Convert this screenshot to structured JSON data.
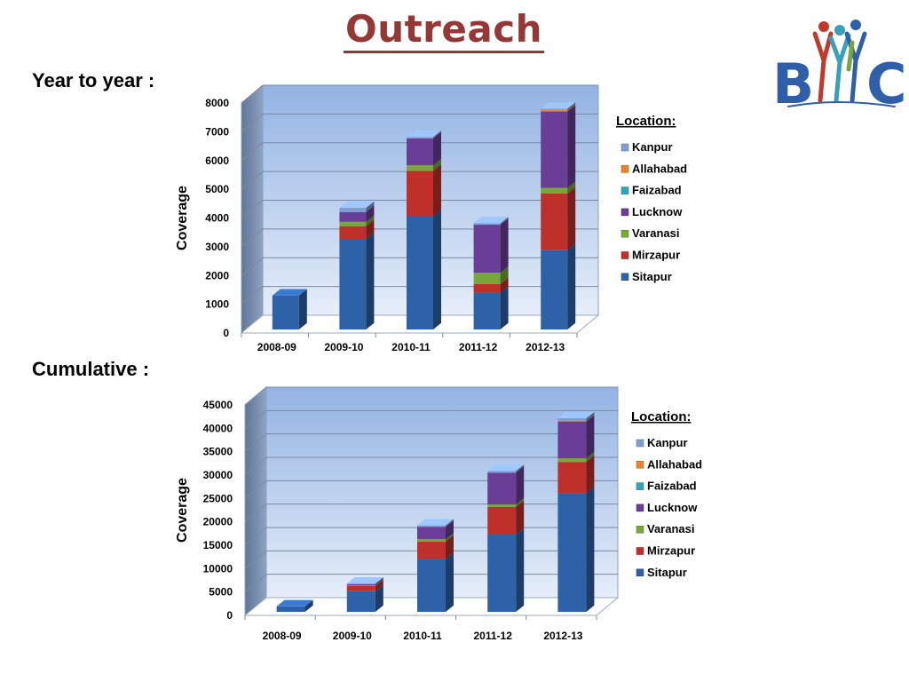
{
  "page": {
    "title": "Outreach",
    "section1_label": "Year to year :",
    "section2_label": "Cumulative :",
    "logo_text": "BYC"
  },
  "legend_colors": {
    "Sitapur": "#2E62A8",
    "Mirzapur": "#C0302B",
    "Varanasi": "#78A73C",
    "Lucknow": "#6A3E96",
    "Faizabad": "#30A7B8",
    "Allahabad": "#E8842A",
    "Kanpur": "#7F9FD0"
  },
  "chart_data": [
    {
      "type": "bar",
      "stacked": true,
      "title": "",
      "ylabel": "Coverage",
      "xlabel": "",
      "legend_title": "Location:",
      "legend_position": "right",
      "grid": true,
      "ylim": [
        0,
        8000
      ],
      "yticks": [
        "0",
        "1000",
        "2000",
        "3000",
        "4000",
        "5000",
        "6000",
        "7000",
        "8000"
      ],
      "categories": [
        "2008-09",
        "2009-10",
        "2010-11",
        "2011-12",
        "2012-13"
      ],
      "series": [
        {
          "name": "Sitapur",
          "values": [
            1200,
            3200,
            4000,
            1300,
            2800
          ]
        },
        {
          "name": "Mirzapur",
          "values": [
            0,
            450,
            1600,
            300,
            2000
          ]
        },
        {
          "name": "Varanasi",
          "values": [
            0,
            150,
            200,
            400,
            200
          ]
        },
        {
          "name": "Lucknow",
          "values": [
            0,
            350,
            950,
            1700,
            2700
          ]
        },
        {
          "name": "Faizabad",
          "values": [
            0,
            0,
            0,
            0,
            0
          ]
        },
        {
          "name": "Allahabad",
          "values": [
            0,
            0,
            0,
            0,
            50
          ]
        },
        {
          "name": "Kanpur",
          "values": [
            0,
            150,
            50,
            50,
            50
          ]
        }
      ]
    },
    {
      "type": "bar",
      "stacked": true,
      "title": "",
      "ylabel": "Coverage",
      "xlabel": "",
      "legend_title": "Location:",
      "legend_position": "right",
      "grid": true,
      "ylim": [
        0,
        45000
      ],
      "yticks": [
        "0",
        "5000",
        "10000",
        "15000",
        "20000",
        "25000",
        "30000",
        "35000",
        "40000",
        "45000"
      ],
      "categories": [
        "2008-09",
        "2009-10",
        "2010-11",
        "2011-12",
        "2012-13"
      ],
      "series": [
        {
          "name": "Sitapur",
          "values": [
            1200,
            4500,
            11500,
            16800,
            25800
          ]
        },
        {
          "name": "Mirzapur",
          "values": [
            0,
            1100,
            3800,
            6000,
            6800
          ]
        },
        {
          "name": "Varanasi",
          "values": [
            0,
            150,
            500,
            550,
            800
          ]
        },
        {
          "name": "Lucknow",
          "values": [
            0,
            300,
            2700,
            6900,
            8000
          ]
        },
        {
          "name": "Faizabad",
          "values": [
            0,
            0,
            0,
            0,
            0
          ]
        },
        {
          "name": "Allahabad",
          "values": [
            0,
            0,
            0,
            0,
            100
          ]
        },
        {
          "name": "Kanpur",
          "values": [
            0,
            100,
            300,
            400,
            600
          ]
        }
      ]
    }
  ]
}
